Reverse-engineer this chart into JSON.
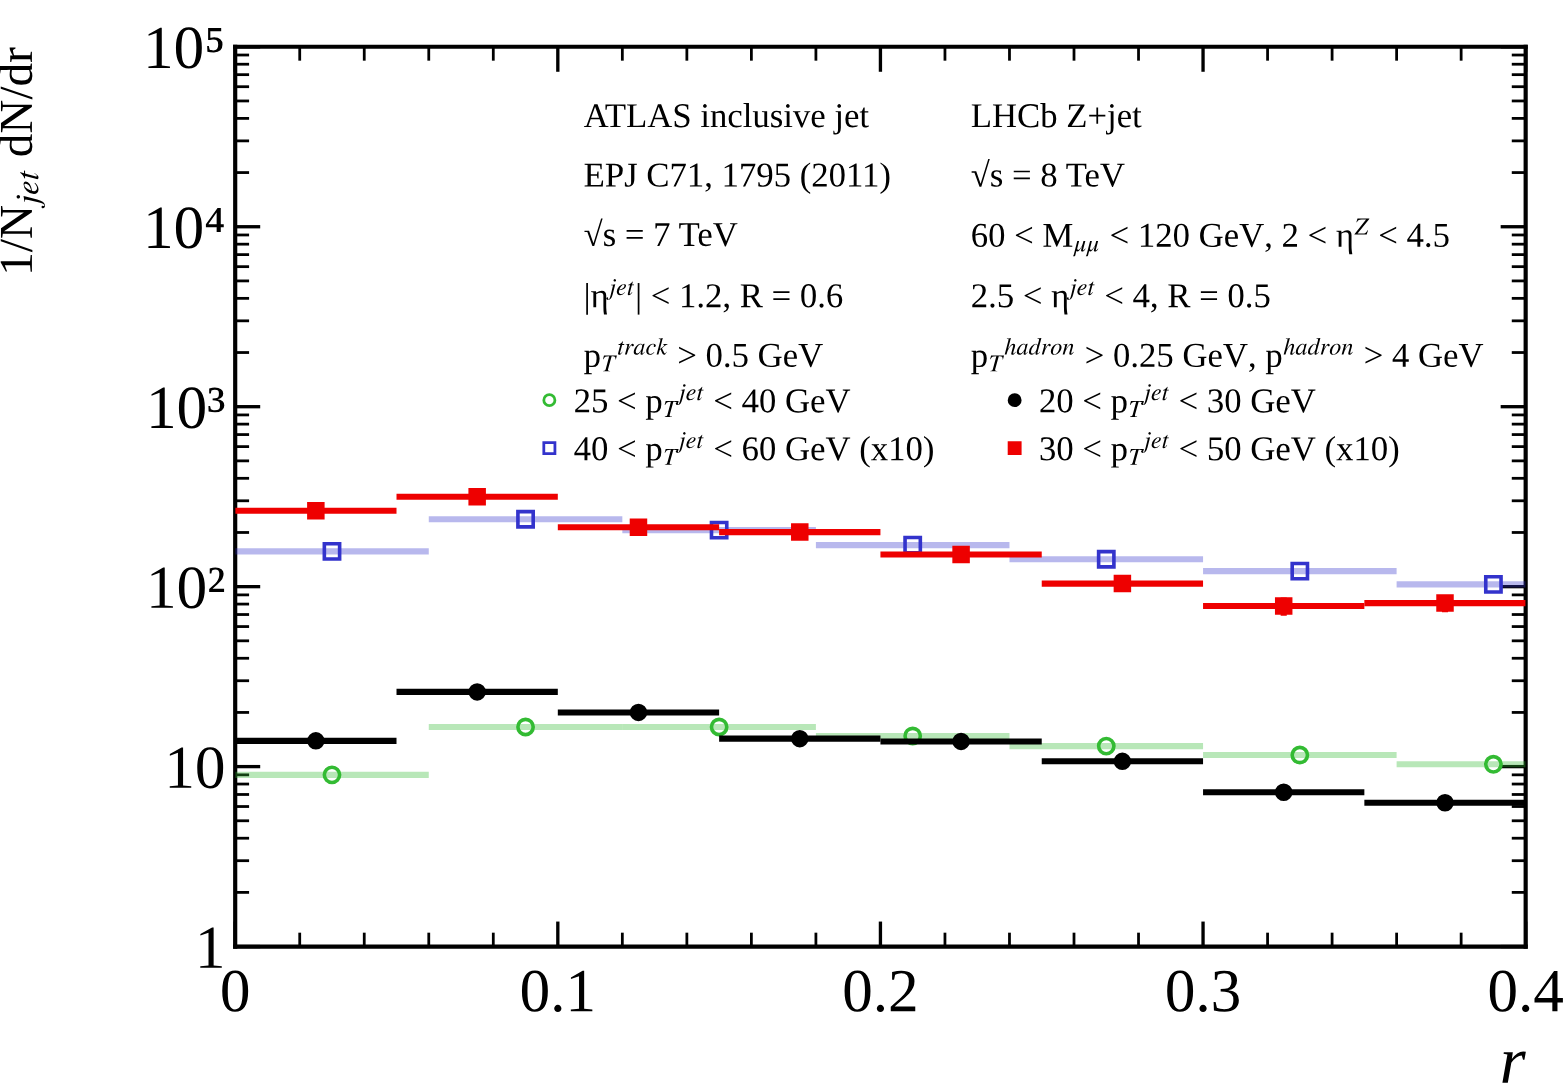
{
  "chart_data": {
    "type": "scatter",
    "xlabel": "r",
    "ylabel": "1/N$_{jet}$ dN/dr",
    "annotations": [
      "ATLAS inclusive jet",
      "EPJ C71, 1795 (2011)",
      "√s = 7 TeV",
      "|η$^{jet}$| < 1.2, R = 0.6",
      "p$_{T}$$^{track}$ > 0.5 GeV",
      "LHCb Z+jet",
      "√s = 8 TeV",
      "60 < M$_{μμ}$ < 120 GeV, 2 < η$^{Z}$ < 4.5",
      "2.5 < η$^{jet}$ < 4, R = 0.5",
      "p$_{T}$$^{hadron}$ > 0.25 GeV, p$^{hadron}$ > 4 GeV"
    ],
    "series": [
      {
        "name": "25 < p$_{T}$$^{jet}$ < 40 GeV",
        "color": "#33bb33",
        "marker": "circle",
        "x": [
          0.03,
          0.09,
          0.15,
          0.21,
          0.27,
          0.33,
          0.39
        ],
        "values": [
          9.0,
          16.6,
          16.6,
          14.8,
          13.0,
          11.6,
          10.3
        ],
        "xerrors": [
          0.03,
          0.03,
          0.03,
          0.03,
          0.03,
          0.03,
          [
            0.36,
            0.4
          ]
        ]
      },
      {
        "name": "40 < p$_{T}$$^{jet}$ < 60 GeV (x10)",
        "color": "#3333cc",
        "marker": "square",
        "x": [
          0.03,
          0.09,
          0.15,
          0.21,
          0.27,
          0.33,
          0.39
        ],
        "values": [
          157,
          237,
          206,
          170,
          142,
          122,
          103
        ],
        "xerrors": [
          0.03,
          0.03,
          0.03,
          0.03,
          0.03,
          0.03,
          [
            0.36,
            0.4
          ]
        ]
      },
      {
        "name": "20 < p$_{T}$$^{jet}$ < 30 GeV",
        "color": "#000000",
        "marker": "circle",
        "x": [
          0.025,
          0.075,
          0.125,
          0.175,
          0.225,
          0.275,
          0.325,
          0.375
        ],
        "values": [
          13.9,
          26,
          20,
          14.3,
          13.8,
          10.7,
          7.2,
          6.3
        ],
        "xerrors": [
          0.025,
          0.025,
          0.025,
          0.025,
          0.025,
          0.025,
          0.025,
          0.025
        ],
        "errors": [
          1.2,
          1.5,
          1.2,
          0.8,
          0.8,
          0.8,
          0.7,
          0.6
        ]
      },
      {
        "name": "30 < p$_{T}$$^{jet}$ < 50 GeV (x10)",
        "color": "#ee0000",
        "marker": "square",
        "x": [
          0.025,
          0.075,
          0.125,
          0.175,
          0.225,
          0.275,
          0.325,
          0.375
        ],
        "values": [
          264,
          316,
          214,
          201,
          151,
          104,
          78,
          81
        ],
        "xerrors": [
          0.025,
          0.025,
          0.025,
          0.025,
          0.025,
          0.025,
          0.025,
          0.025
        ],
        "errors": [
          15,
          18,
          12,
          12,
          10,
          10,
          9,
          9
        ]
      }
    ],
    "xlim": [
      0,
      0.4
    ],
    "xticks": [
      0,
      0.1,
      0.2,
      0.3,
      0.4
    ],
    "log": "y",
    "ylim": [
      1,
      100000
    ],
    "yticks": [
      1,
      10,
      {
        "value": 100,
        "label": "10²"
      },
      {
        "value": 1000,
        "label": "10³"
      },
      {
        "value": 10000,
        "label": "10⁴"
      },
      {
        "value": 100000,
        "label": "10⁵"
      }
    ],
    "grid": false,
    "legend": "top right"
  }
}
